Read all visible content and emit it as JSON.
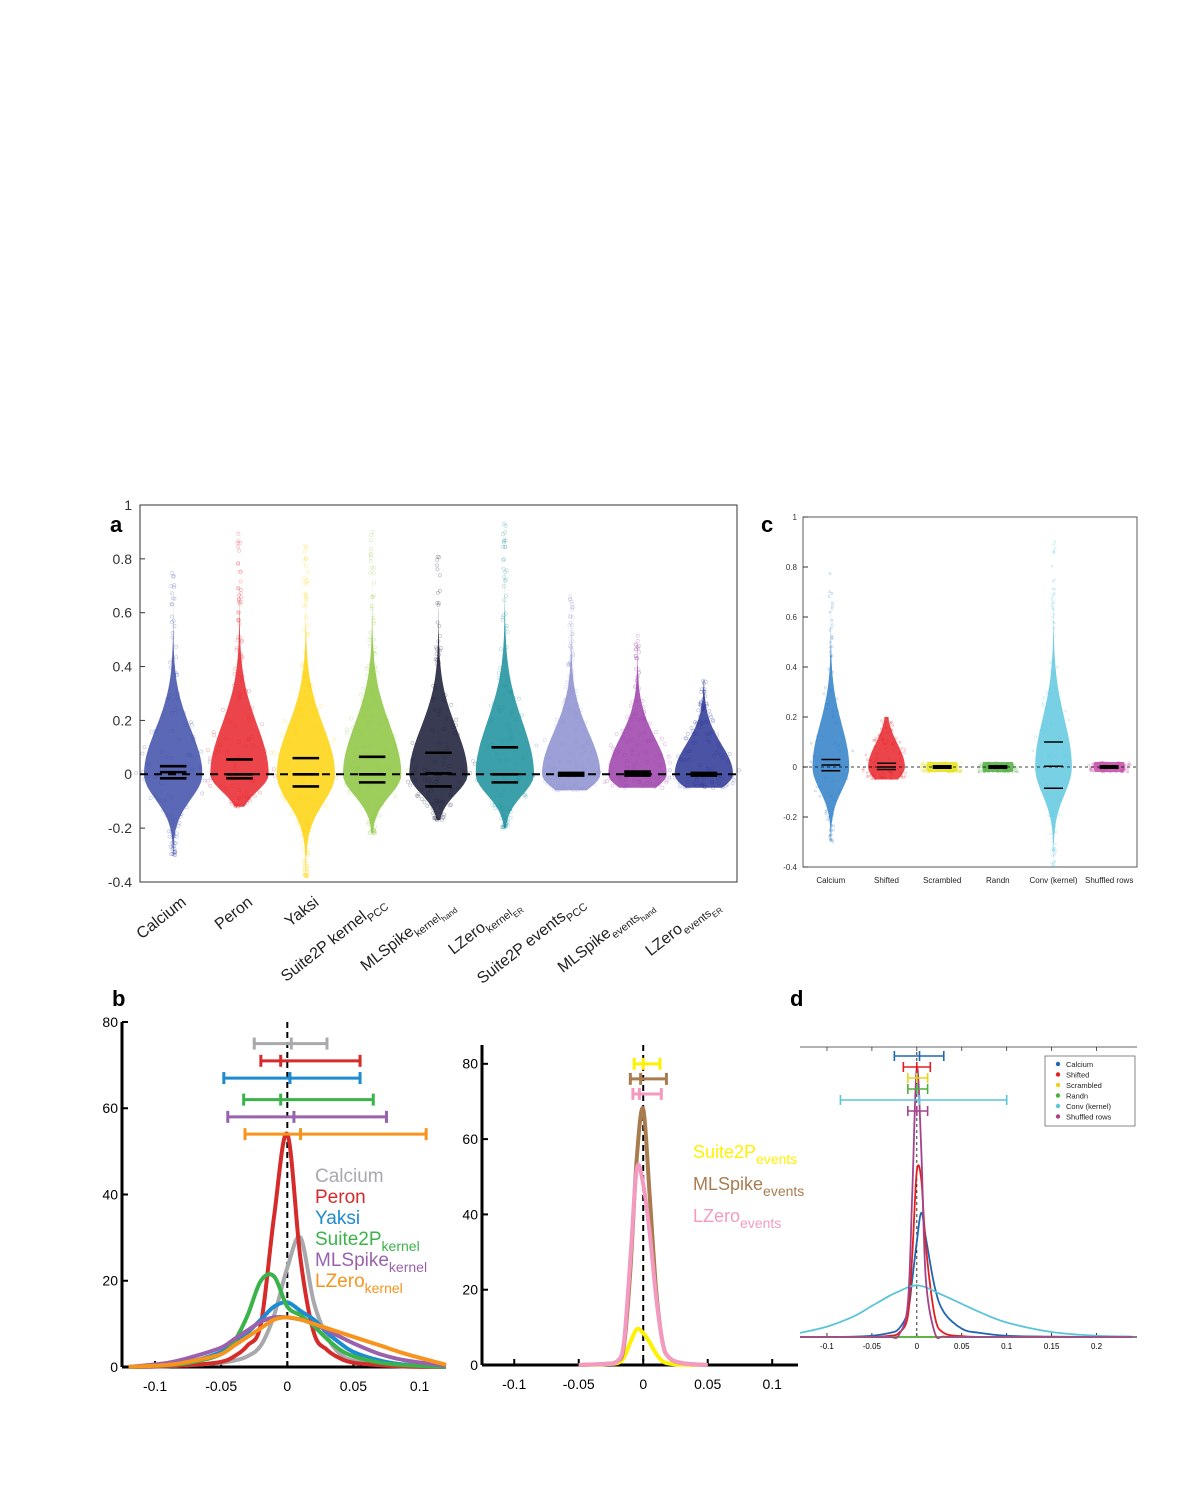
{
  "panel_letters": {
    "a": "a",
    "b": "b",
    "c": "c",
    "d": "d"
  },
  "chart_data": [
    {
      "panel": "a",
      "type": "scatter",
      "subtype": "violin-swarm",
      "ylim": [
        -0.4,
        1
      ],
      "yticks": [
        -0.4,
        -0.2,
        0,
        0.2,
        0.4,
        0.6,
        0.8,
        1
      ],
      "ytick_labels": [
        "-0.4",
        "-0.2",
        "0",
        "0.2",
        "0.4",
        "0.6",
        "0.8",
        "1"
      ],
      "reference_line": {
        "y": 0,
        "style": "dashed"
      },
      "grid": false,
      "categories": [
        {
          "label": "Calcium",
          "sub": "",
          "color": "#3d4ea8",
          "quartiles": [
            -0.015,
            0.008,
            0.03
          ],
          "min": -0.3,
          "max": 0.78
        },
        {
          "label": "Peron",
          "sub": "",
          "color": "#e8232a",
          "quartiles": [
            -0.015,
            0.0,
            0.055
          ],
          "min": -0.12,
          "max": 0.9
        },
        {
          "label": "Yaksi",
          "sub": "",
          "color": "#fed20a",
          "quartiles": [
            -0.045,
            0.0,
            0.06
          ],
          "min": -0.38,
          "max": 0.86
        },
        {
          "label": "Suite2P kernel",
          "sub": "PCC",
          "color": "#8cc63f",
          "quartiles": [
            -0.03,
            0.0,
            0.065
          ],
          "min": -0.22,
          "max": 0.9
        },
        {
          "label": "MLSpike",
          "sub": "kernel_hand",
          "sub_main": "kernel",
          "sub_sub": "hand",
          "color": "#161934",
          "quartiles": [
            -0.045,
            0.003,
            0.08
          ],
          "min": -0.17,
          "max": 0.82
        },
        {
          "label": "LZero",
          "sub": "kernel_ER",
          "sub_main": "kernel",
          "sub_sub": "ER",
          "color": "#1a8f9c",
          "quartiles": [
            -0.03,
            0.0,
            0.1
          ],
          "min": -0.2,
          "max": 0.98
        },
        {
          "label": "Suite2P  events",
          "sub": "PCC",
          "color": "#8b8fcf",
          "quartiles": [
            -0.005,
            0.0,
            0.005
          ],
          "min": -0.06,
          "max": 0.68
        },
        {
          "label": "MLSpike",
          "sub": "events_hand",
          "sub_main": "events",
          "sub_sub": "hand",
          "color": "#9b3fa9",
          "quartiles": [
            -0.005,
            0.003,
            0.01
          ],
          "min": -0.05,
          "max": 0.52
        },
        {
          "label": "LZero",
          "sub": "events_ER",
          "sub_main": "events",
          "sub_sub": "ER",
          "color": "#2b3595",
          "quartiles": [
            -0.005,
            0.0,
            0.005
          ],
          "min": -0.05,
          "max": 0.35
        }
      ]
    },
    {
      "panel": "b-left",
      "type": "line",
      "xlim": [
        -0.125,
        0.12
      ],
      "ylim": [
        0,
        80
      ],
      "xticks": [
        -0.1,
        -0.05,
        0,
        0.05,
        0.1
      ],
      "xtick_labels": [
        "-0.1",
        "-0.05",
        "0",
        "0.05",
        "0.1"
      ],
      "yticks": [
        0,
        20,
        40,
        60,
        80
      ],
      "ytick_labels": [
        "0",
        "20",
        "40",
        "60",
        "80"
      ],
      "reference_line": {
        "x": 0,
        "style": "dashed"
      },
      "x": [
        -0.12,
        -0.09,
        -0.07,
        -0.05,
        -0.04,
        -0.03,
        -0.02,
        -0.01,
        0,
        0.01,
        0.02,
        0.03,
        0.04,
        0.05,
        0.07,
        0.09,
        0.12
      ],
      "series": [
        {
          "name": "Calcium",
          "sub": "",
          "color": "#a7a9ac",
          "values": [
            0,
            0.2,
            0.5,
            1,
            1.5,
            2.5,
            5,
            12,
            23,
            30,
            15,
            7,
            3,
            1.5,
            0.6,
            0.2,
            0
          ],
          "errorbar": {
            "y": 75,
            "lo": -0.025,
            "mid": 0.003,
            "hi": 0.03
          }
        },
        {
          "name": "Peron",
          "sub": "",
          "color": "#d62b2b",
          "values": [
            0,
            0.2,
            0.5,
            1.2,
            2.5,
            5,
            10,
            35,
            54,
            25,
            8,
            4,
            2,
            1,
            0.4,
            0.1,
            0
          ],
          "errorbar": {
            "y": 71,
            "lo": -0.02,
            "mid": -0.005,
            "hi": 0.055
          }
        },
        {
          "name": "Yaksi",
          "sub": "",
          "color": "#1c8bd0",
          "values": [
            0,
            0.5,
            1.5,
            3.5,
            5.5,
            8,
            11,
            14,
            15,
            13,
            11,
            8,
            5.5,
            3.5,
            1.5,
            0.5,
            0
          ],
          "errorbar": {
            "y": 67,
            "lo": -0.048,
            "mid": 0.002,
            "hi": 0.055
          }
        },
        {
          "name": "Suite2P",
          "sub": "kernel",
          "color": "#3ab34a",
          "values": [
            0,
            0.4,
            1.2,
            3,
            6,
            12,
            20,
            21,
            14,
            12,
            9.5,
            6.5,
            4,
            2.5,
            1,
            0.4,
            0
          ],
          "errorbar": {
            "y": 62,
            "lo": -0.033,
            "mid": -0.005,
            "hi": 0.065
          }
        },
        {
          "name": "MLSpike",
          "sub": "kernel",
          "color": "#9a62ad",
          "values": [
            0,
            1,
            2.5,
            4.5,
            6.5,
            8.5,
            10.5,
            11.5,
            11.5,
            11,
            10,
            8.5,
            7,
            5.5,
            3,
            1.5,
            0.3
          ],
          "errorbar": {
            "y": 58,
            "lo": -0.045,
            "mid": 0.005,
            "hi": 0.075
          }
        },
        {
          "name": "LZero",
          "sub": "kernel",
          "color": "#f7941d",
          "values": [
            0,
            0.5,
            1.5,
            3,
            5,
            7,
            9,
            11,
            11.5,
            11,
            10,
            9,
            8,
            7,
            5,
            3,
            0.5
          ],
          "errorbar": {
            "y": 54,
            "lo": -0.032,
            "mid": 0.01,
            "hi": 0.105
          }
        }
      ]
    },
    {
      "panel": "b-right",
      "type": "line",
      "xlim": [
        -0.125,
        0.12
      ],
      "ylim": [
        0,
        85
      ],
      "xticks": [
        -0.1,
        -0.05,
        0,
        0.05,
        0.1
      ],
      "xtick_labels": [
        "-0.1",
        "-0.05",
        "0",
        "0.05",
        "0.1"
      ],
      "yticks": [
        0,
        20,
        40,
        60,
        80
      ],
      "ytick_labels": [
        "0",
        "20",
        "40",
        "60",
        "80"
      ],
      "reference_line": {
        "x": 0,
        "style": "dashed"
      },
      "x": [
        -0.05,
        -0.03,
        -0.02,
        -0.015,
        -0.01,
        -0.005,
        0,
        0.005,
        0.01,
        0.015,
        0.02,
        0.03,
        0.05
      ],
      "series": [
        {
          "name": "Suite2P",
          "sub": "events",
          "color": "#fff200",
          "values": [
            0,
            0.2,
            0.5,
            2,
            6,
            9.5,
            8.5,
            6,
            3,
            1,
            0.4,
            0.1,
            0
          ],
          "errorbar": {
            "y": 80,
            "lo": -0.007,
            "mid": 0.0,
            "hi": 0.013
          }
        },
        {
          "name": "MLSpike",
          "sub": "events",
          "color": "#a97c50",
          "values": [
            0,
            0.3,
            1,
            5,
            25,
            55,
            68,
            45,
            20,
            6,
            2,
            0.5,
            0
          ],
          "errorbar": {
            "y": 76,
            "lo": -0.01,
            "mid": -0.002,
            "hi": 0.018
          }
        },
        {
          "name": "LZero",
          "sub": "events",
          "color": "#f49ac1",
          "values": [
            0,
            0.3,
            1,
            6,
            28,
            52,
            48,
            35,
            18,
            6,
            2,
            0.5,
            0
          ],
          "errorbar": {
            "y": 72,
            "lo": -0.008,
            "mid": -0.003,
            "hi": 0.014
          }
        }
      ]
    },
    {
      "panel": "c",
      "type": "scatter",
      "subtype": "violin-swarm",
      "ylim": [
        -0.4,
        1
      ],
      "yticks": [
        -0.4,
        -0.2,
        0,
        0.2,
        0.4,
        0.6,
        0.8,
        1
      ],
      "ytick_labels": [
        "-0.4",
        "-0.2",
        "0",
        "0.2",
        "0.4",
        "0.6",
        "0.8",
        "1"
      ],
      "reference_line": {
        "y": 0,
        "style": "dashed"
      },
      "grid": false,
      "categories": [
        {
          "label": "Calcium",
          "color": "#2f7fc8",
          "quartiles": [
            -0.015,
            0.008,
            0.03
          ],
          "min": -0.3,
          "max": 0.78
        },
        {
          "label": "Shifted",
          "color": "#e8232a",
          "quartiles": [
            -0.01,
            0.0,
            0.015
          ],
          "min": -0.05,
          "max": 0.2
        },
        {
          "label": "Scrambled",
          "color": "#e5e319",
          "quartiles": [
            -0.005,
            0.0,
            0.005
          ],
          "min": -0.02,
          "max": 0.02
        },
        {
          "label": "Randn",
          "color": "#52b043",
          "quartiles": [
            -0.005,
            0.0,
            0.005
          ],
          "min": -0.02,
          "max": 0.02
        },
        {
          "label": "Conv (kernel)",
          "color": "#5fc8de",
          "quartiles": [
            -0.085,
            0.003,
            0.1
          ],
          "min": -0.4,
          "max": 0.95
        },
        {
          "label": "Shuffled rows",
          "color": "#c54ba8",
          "quartiles": [
            -0.005,
            0.0,
            0.005
          ],
          "min": -0.02,
          "max": 0.02
        }
      ]
    },
    {
      "panel": "d",
      "type": "line",
      "xlim": [
        -0.13,
        0.245
      ],
      "ylim": [
        0,
        70
      ],
      "xticks": [
        -0.1,
        -0.05,
        0,
        0.05,
        0.1,
        0.15,
        0.2
      ],
      "xtick_labels": [
        "-0.1",
        "-0.05",
        "0",
        "0.05",
        "0.1",
        "0.15",
        "0.2"
      ],
      "reference_line": {
        "x": 0,
        "style": "dashed"
      },
      "legend": "top-right",
      "x": [
        -0.13,
        -0.1,
        -0.07,
        -0.05,
        -0.03,
        -0.02,
        -0.01,
        -0.005,
        0,
        0.005,
        0.01,
        0.02,
        0.03,
        0.05,
        0.07,
        0.1,
        0.15,
        0.2,
        0.24
      ],
      "series": [
        {
          "name": "Calcium",
          "color": "#2166b0",
          "values": [
            0,
            0,
            0.1,
            0.3,
            1,
            2,
            6,
            14,
            23,
            30,
            24,
            12,
            6,
            2,
            1,
            0.3,
            0.1,
            0,
            0
          ],
          "errorbar": {
            "lo": -0.025,
            "mid": 0.003,
            "hi": 0.03
          }
        },
        {
          "name": "Shifted",
          "color": "#e02020",
          "values": [
            0,
            0,
            0,
            0,
            0.3,
            1,
            5,
            20,
            40,
            38,
            22,
            5,
            1,
            0.2,
            0,
            0,
            0,
            0,
            0
          ],
          "errorbar": {
            "lo": -0.015,
            "mid": 0.0,
            "hi": 0.015
          }
        },
        {
          "name": "Scrambled",
          "color": "#e6d51f",
          "values": [
            0,
            0,
            0,
            0,
            0,
            0,
            0,
            0,
            0,
            0,
            0,
            0,
            0,
            0,
            0,
            0,
            0,
            0,
            0
          ],
          "errorbar": {
            "lo": -0.01,
            "mid": 0.0,
            "hi": 0.012
          }
        },
        {
          "name": "Randn",
          "color": "#4fae3f",
          "values": [
            0,
            0,
            0,
            0,
            0,
            0,
            0,
            0,
            0,
            0,
            0,
            0,
            0,
            0,
            0,
            0,
            0,
            0,
            0
          ],
          "errorbar": {
            "lo": -0.01,
            "mid": 0.0,
            "hi": 0.012
          }
        },
        {
          "name": "Conv (kernel)",
          "color": "#5bc4d9",
          "values": [
            1,
            2.5,
            5,
            7.5,
            10,
            11,
            12,
            12.3,
            12.5,
            12.3,
            12,
            11,
            10,
            8,
            6,
            3.5,
            1.2,
            0.3,
            0.1
          ],
          "errorbar": {
            "lo": -0.085,
            "mid": 0.003,
            "hi": 0.1
          }
        },
        {
          "name": "Shuffled rows",
          "color": "#a2448a",
          "values": [
            0,
            0,
            0,
            0,
            0,
            0.5,
            8,
            35,
            65,
            45,
            14,
            1,
            0.1,
            0,
            0,
            0,
            0,
            0,
            0
          ],
          "errorbar": {
            "lo": -0.01,
            "mid": 0.0,
            "hi": 0.012
          }
        }
      ]
    }
  ]
}
